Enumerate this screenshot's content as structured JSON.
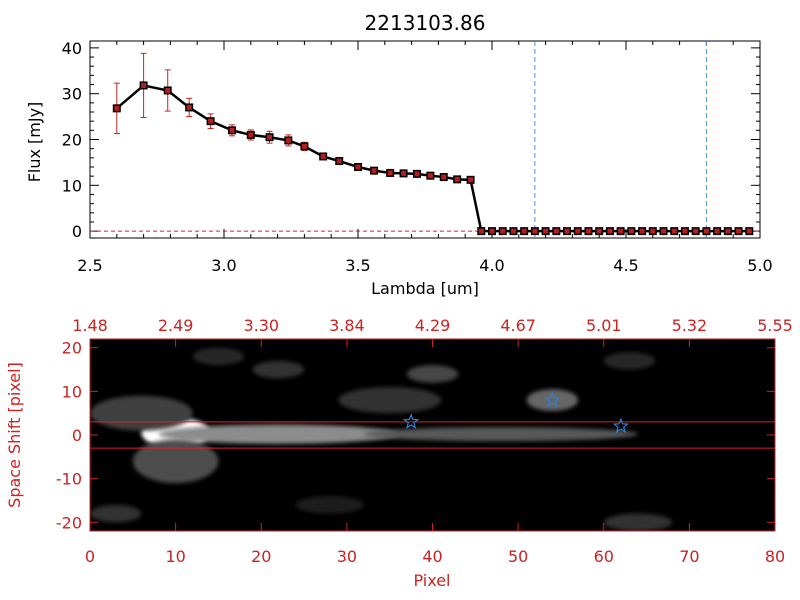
{
  "colors": {
    "spectrum_line": "#000000",
    "data_marker": "#b41e1e",
    "error_bar": "#cc2222",
    "limit_line": "#4a90e2",
    "zero_line": "#dd2222",
    "image_frame": "#cc2222",
    "star_marker": "#2f7fd8"
  },
  "chart_data": [
    {
      "type": "line",
      "title": "2213103.86",
      "xlabel": "Lambda [um]",
      "ylabel": "Flux [mJy]",
      "xlim": [
        2.5,
        5.0
      ],
      "ylim": [
        -1.5,
        41.5
      ],
      "xticks": [
        "2.5",
        "3.0",
        "3.5",
        "4.0",
        "4.5",
        "5.0"
      ],
      "xtick_values": [
        2.5,
        3.0,
        3.5,
        4.0,
        4.5,
        5.0
      ],
      "yticks": [
        "0",
        "10",
        "20",
        "30",
        "40"
      ],
      "ytick_values": [
        0,
        10,
        20,
        30,
        40
      ],
      "grid": false,
      "series": [
        {
          "x": [
            2.6,
            2.7,
            2.79,
            2.87,
            2.95,
            3.03,
            3.1,
            3.17,
            3.24,
            3.3,
            3.37,
            3.43,
            3.5,
            3.56,
            3.62,
            3.67,
            3.72,
            3.77,
            3.82,
            3.87,
            3.92,
            3.96,
            4.0,
            4.04,
            4.08,
            4.12,
            4.16,
            4.2,
            4.24,
            4.28,
            4.32,
            4.36,
            4.4,
            4.44,
            4.48,
            4.52,
            4.56,
            4.6,
            4.64,
            4.68,
            4.72,
            4.76,
            4.8,
            4.84,
            4.88,
            4.92,
            4.96
          ],
          "y": [
            26.8,
            31.8,
            30.7,
            27.0,
            24.0,
            22.0,
            21.0,
            20.5,
            19.8,
            18.5,
            16.3,
            15.3,
            14.0,
            13.2,
            12.7,
            12.6,
            12.5,
            12.1,
            11.8,
            11.3,
            11.2,
            0,
            0,
            0,
            0,
            0,
            0,
            0,
            0,
            0,
            0,
            0,
            0,
            0,
            0,
            0,
            0,
            0,
            0,
            0,
            0,
            0,
            0,
            0,
            0,
            0,
            0
          ],
          "err": [
            5.5,
            7.0,
            4.5,
            2.0,
            1.6,
            1.2,
            1.1,
            1.3,
            1.2,
            0.9,
            0,
            0,
            0,
            0,
            0,
            0,
            0,
            0,
            0,
            0,
            0,
            0,
            0,
            0,
            0,
            0,
            0,
            0,
            0,
            0,
            0,
            0,
            0,
            0,
            0,
            0,
            0,
            0,
            0,
            0,
            0,
            0,
            0,
            0,
            0,
            0,
            0
          ]
        }
      ],
      "vlines": [
        4.16,
        4.8
      ],
      "hline": 0
    },
    {
      "type": "heatmap",
      "xlabel": "Pixel",
      "ylabel": "Space Shift [pixel]",
      "xlim": [
        0,
        80
      ],
      "ylim": [
        -22,
        22
      ],
      "xticks": [
        "0",
        "10",
        "20",
        "30",
        "40",
        "50",
        "60",
        "70",
        "80"
      ],
      "xtick_values": [
        0,
        10,
        20,
        30,
        40,
        50,
        60,
        70,
        80
      ],
      "yticks": [
        "-20",
        "-10",
        "0",
        "10",
        "20"
      ],
      "ytick_values": [
        -20,
        -10,
        0,
        10,
        20
      ],
      "top_axis_labels": [
        "1.48",
        "2.49",
        "3.30",
        "3.84",
        "4.29",
        "4.67",
        "5.01",
        "5.32",
        "5.55"
      ],
      "hlines": [
        3,
        -3
      ],
      "stars": [
        {
          "x": 37.5,
          "y": 3
        },
        {
          "x": 54,
          "y": 8
        },
        {
          "x": 62,
          "y": 2
        }
      ],
      "blobs": [
        {
          "x": 10,
          "y": 0.5,
          "sx": 4,
          "sy": 3.5,
          "a": 1.0
        },
        {
          "x": 22,
          "y": 0.2,
          "sx": 14,
          "sy": 2.2,
          "a": 0.55
        },
        {
          "x": 48,
          "y": 0.2,
          "sx": 16,
          "sy": 1.6,
          "a": 0.35
        },
        {
          "x": 10,
          "y": -6,
          "sx": 5,
          "sy": 5,
          "a": 0.3
        },
        {
          "x": 6,
          "y": 5,
          "sx": 6,
          "sy": 4,
          "a": 0.25
        },
        {
          "x": 40,
          "y": 14,
          "sx": 3,
          "sy": 2,
          "a": 0.28
        },
        {
          "x": 35,
          "y": 8,
          "sx": 6,
          "sy": 3,
          "a": 0.2
        },
        {
          "x": 54,
          "y": 8,
          "sx": 3,
          "sy": 2.5,
          "a": 0.4
        },
        {
          "x": 22,
          "y": 15,
          "sx": 3,
          "sy": 2,
          "a": 0.2
        },
        {
          "x": 63,
          "y": 17,
          "sx": 3,
          "sy": 2,
          "a": 0.15
        },
        {
          "x": 64,
          "y": -20,
          "sx": 4,
          "sy": 2,
          "a": 0.2
        },
        {
          "x": 3,
          "y": -18,
          "sx": 3,
          "sy": 2,
          "a": 0.2
        },
        {
          "x": 28,
          "y": -16,
          "sx": 4,
          "sy": 2,
          "a": 0.12
        },
        {
          "x": 15,
          "y": 18,
          "sx": 3,
          "sy": 2,
          "a": 0.15
        }
      ]
    }
  ]
}
